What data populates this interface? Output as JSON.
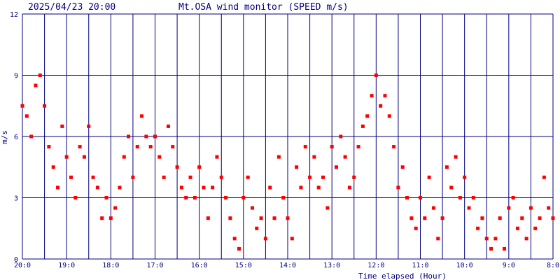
{
  "header": {
    "timestamp": "2025/04/23 20:00",
    "title": "Mt.OSA wind monitor (SPEED m/s)"
  },
  "colors": {
    "grid": "#000080",
    "text": "#000080",
    "point": "#ff0000",
    "background": "#ffffff"
  },
  "chart_data": {
    "type": "scatter",
    "title": "Mt.OSA wind monitor (SPEED m/s)",
    "xlabel": "Time elapsed (Hour)",
    "ylabel": "m/s",
    "xlim": [
      0,
      12
    ],
    "ylim": [
      0,
      12
    ],
    "x_tick_labels": [
      "20:0",
      "19:0",
      "18:0",
      "17:0",
      "16:0",
      "15:0",
      "14:0",
      "13:0",
      "12:0",
      "11:0",
      "10:0",
      "9:0",
      "8:0"
    ],
    "y_ticks": [
      0,
      3,
      6,
      9,
      12
    ],
    "grid": true,
    "series": [
      {
        "name": "",
        "x": [
          0.0,
          0.1,
          0.2,
          0.3,
          0.4,
          0.5,
          0.6,
          0.7,
          0.8,
          0.9,
          1.0,
          1.1,
          1.2,
          1.3,
          1.4,
          1.5,
          1.6,
          1.7,
          1.8,
          1.9,
          2.0,
          2.1,
          2.2,
          2.3,
          2.4,
          2.5,
          2.6,
          2.7,
          2.8,
          2.9,
          3.0,
          3.1,
          3.2,
          3.3,
          3.4,
          3.5,
          3.6,
          3.7,
          3.8,
          3.9,
          4.0,
          4.1,
          4.2,
          4.3,
          4.4,
          4.5,
          4.6,
          4.7,
          4.8,
          4.9,
          5.0,
          5.1,
          5.2,
          5.3,
          5.4,
          5.5,
          5.6,
          5.7,
          5.8,
          5.9,
          6.0,
          6.1,
          6.2,
          6.3,
          6.4,
          6.5,
          6.6,
          6.7,
          6.8,
          6.9,
          7.0,
          7.1,
          7.2,
          7.3,
          7.4,
          7.5,
          7.6,
          7.7,
          7.8,
          7.9,
          8.0,
          8.1,
          8.2,
          8.3,
          8.4,
          8.5,
          8.6,
          8.7,
          8.8,
          8.9,
          9.0,
          9.1,
          9.2,
          9.3,
          9.4,
          9.5,
          9.6,
          9.7,
          9.8,
          9.9,
          10.0,
          10.1,
          10.2,
          10.3,
          10.4,
          10.5,
          10.6,
          10.7,
          10.8,
          10.9,
          11.0,
          11.1,
          11.2,
          11.3,
          11.4,
          11.5,
          11.6,
          11.7,
          11.8,
          11.9,
          12.0
        ],
        "y": [
          7.5,
          7.0,
          6.0,
          8.5,
          9.0,
          7.5,
          5.5,
          4.5,
          3.5,
          6.5,
          5.0,
          4.0,
          3.0,
          5.5,
          5.0,
          6.5,
          4.0,
          3.5,
          2.0,
          3.0,
          2.0,
          2.5,
          3.5,
          5.0,
          6.0,
          4.0,
          5.5,
          7.0,
          6.0,
          5.5,
          6.0,
          5.0,
          4.0,
          6.5,
          5.5,
          4.5,
          3.5,
          3.0,
          4.0,
          3.0,
          4.5,
          3.5,
          2.0,
          3.5,
          5.0,
          4.0,
          3.0,
          2.0,
          1.0,
          0.5,
          3.0,
          4.0,
          2.5,
          1.5,
          2.0,
          1.0,
          3.5,
          2.0,
          5.0,
          3.0,
          2.0,
          1.0,
          4.5,
          3.5,
          5.5,
          4.0,
          5.0,
          3.5,
          4.0,
          2.5,
          5.5,
          4.5,
          6.0,
          5.0,
          3.5,
          4.0,
          5.5,
          6.5,
          7.0,
          8.0,
          9.0,
          7.5,
          8.0,
          7.0,
          5.5,
          3.5,
          4.5,
          3.0,
          2.0,
          1.5,
          3.0,
          2.0,
          4.0,
          2.5,
          1.0,
          2.0,
          4.5,
          3.5,
          5.0,
          3.0,
          4.0,
          2.5,
          3.0,
          1.5,
          2.0,
          1.0,
          0.5,
          1.0,
          2.0,
          0.5,
          2.5,
          3.0,
          1.5,
          2.0,
          1.0,
          2.5,
          1.5,
          2.0,
          4.0,
          2.5,
          2.0
        ]
      }
    ]
  }
}
